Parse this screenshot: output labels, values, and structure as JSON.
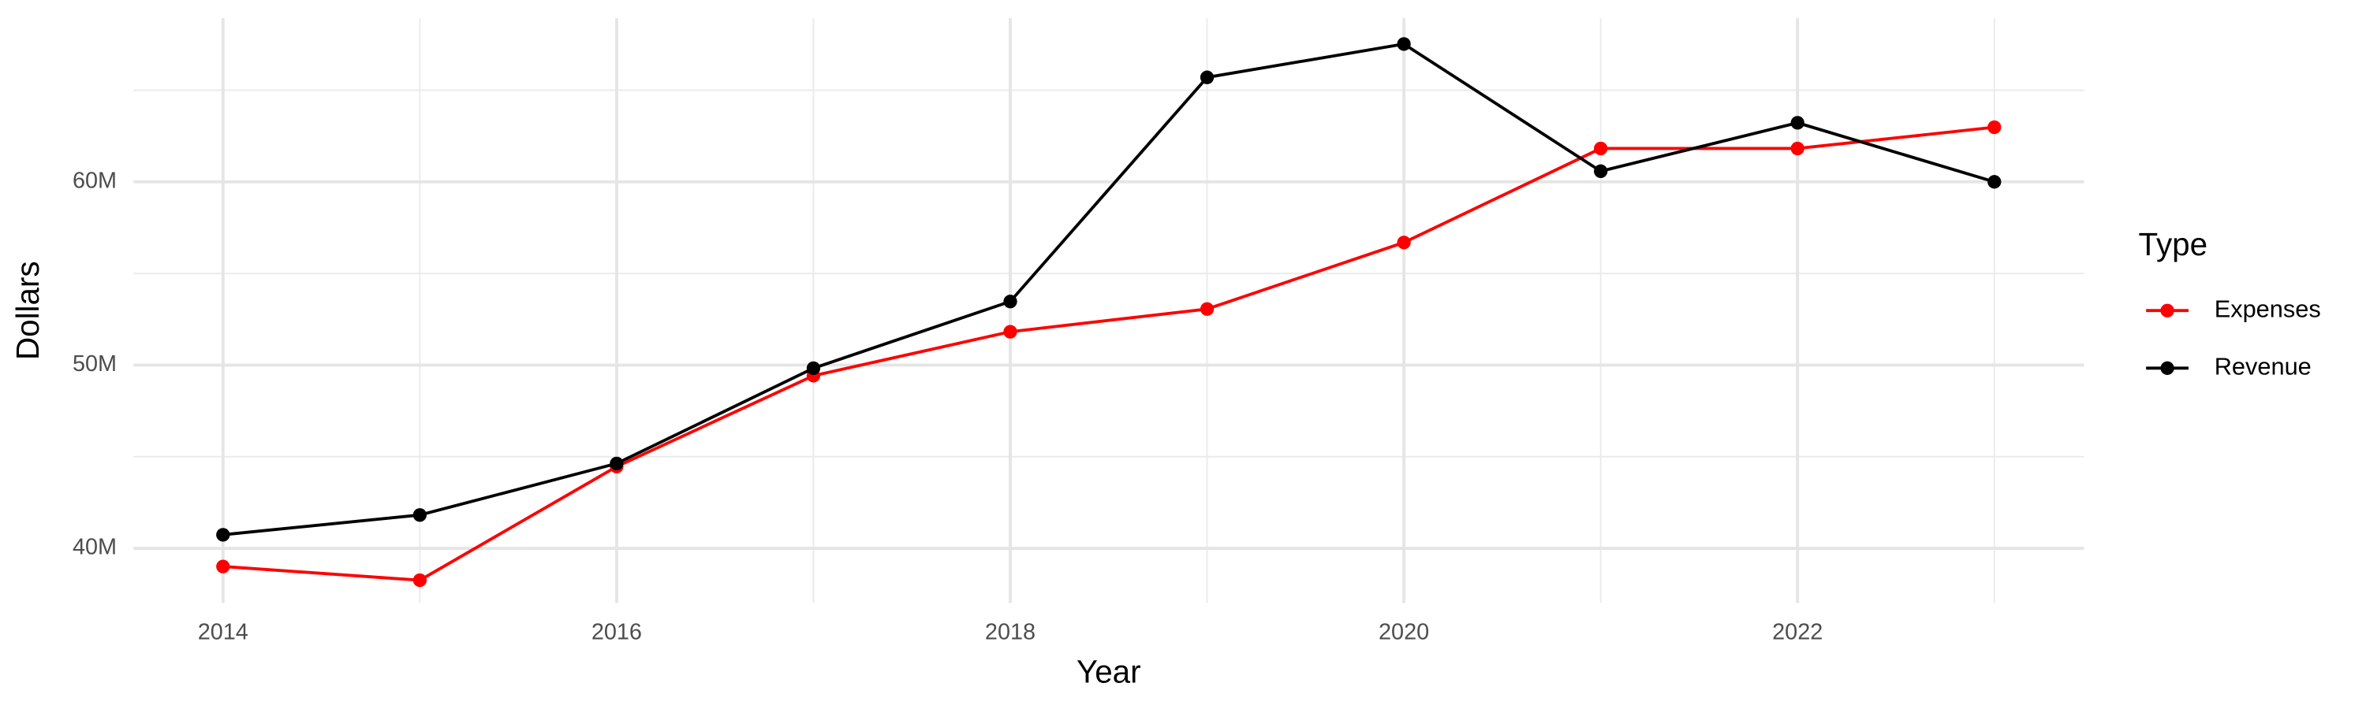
{
  "chart_data": {
    "type": "line",
    "x_label": "Year",
    "y_label": "Dollars",
    "legend_title": "Type",
    "x": [
      2014,
      2015,
      2016,
      2017,
      2018,
      2019,
      2020,
      2021,
      2022,
      2023
    ],
    "series": [
      {
        "name": "Expenses",
        "color": "#ff0000",
        "values": [
          39010000,
          38260000,
          44460000,
          49420000,
          51820000,
          53060000,
          56690000,
          61820000,
          61820000,
          62980000
        ]
      },
      {
        "name": "Revenue",
        "color": "#000000",
        "values": [
          40740000,
          41820000,
          44630000,
          49830000,
          53470000,
          65700000,
          67520000,
          60580000,
          63220000,
          60000000
        ]
      }
    ],
    "xlim": [
      2013.545,
      2023.455
    ],
    "xticks": [
      2014,
      2016,
      2018,
      2020,
      2022
    ],
    "x_minor_ticks": [
      2015,
      2017,
      2019,
      2021,
      2023
    ],
    "ylim": [
      37020000,
      68930000
    ],
    "yticks": [
      {
        "value": 40000000,
        "label": "40M"
      },
      {
        "value": 50000000,
        "label": "50M"
      },
      {
        "value": 60000000,
        "label": "60M"
      }
    ],
    "y_minor_ticks": [
      45000000,
      55000000,
      65000000
    ],
    "grid": true,
    "legend_position": "right"
  }
}
